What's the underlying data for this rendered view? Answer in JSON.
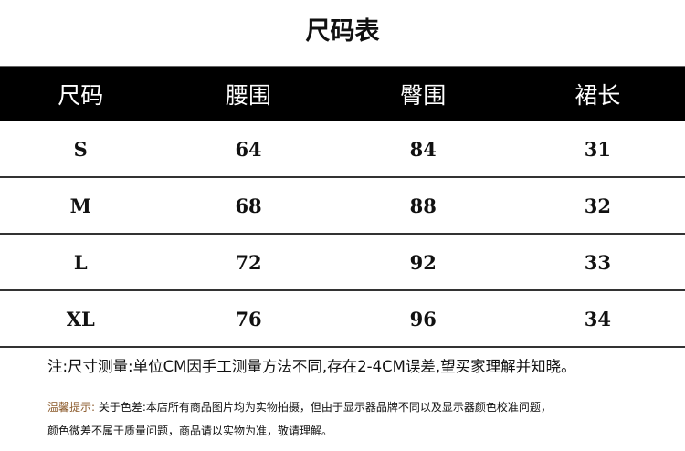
{
  "title": "尺码表",
  "table": {
    "headers": [
      "尺码",
      "腰围",
      "臀围",
      "裙长"
    ],
    "rows": [
      [
        "S",
        "64",
        "84",
        "31"
      ],
      [
        "M",
        "68",
        "88",
        "32"
      ],
      [
        "L",
        "72",
        "92",
        "33"
      ],
      [
        "XL",
        "76",
        "96",
        "34"
      ]
    ]
  },
  "note": "注:尺寸测量:单位CM因手工测量方法不同,存在2-4CM误差,望买家理解并知晓。",
  "tip": {
    "label": "温馨提示:",
    "line1": " 关于色差:本店所有商品图片均为实物拍摄，但由于显示器品牌不同以及显示器颜色校准问题，",
    "line2": "颜色微差不属于质量问题，商品请以实物为准，敬请理解。",
    "label_color": "#8b5a2b"
  }
}
